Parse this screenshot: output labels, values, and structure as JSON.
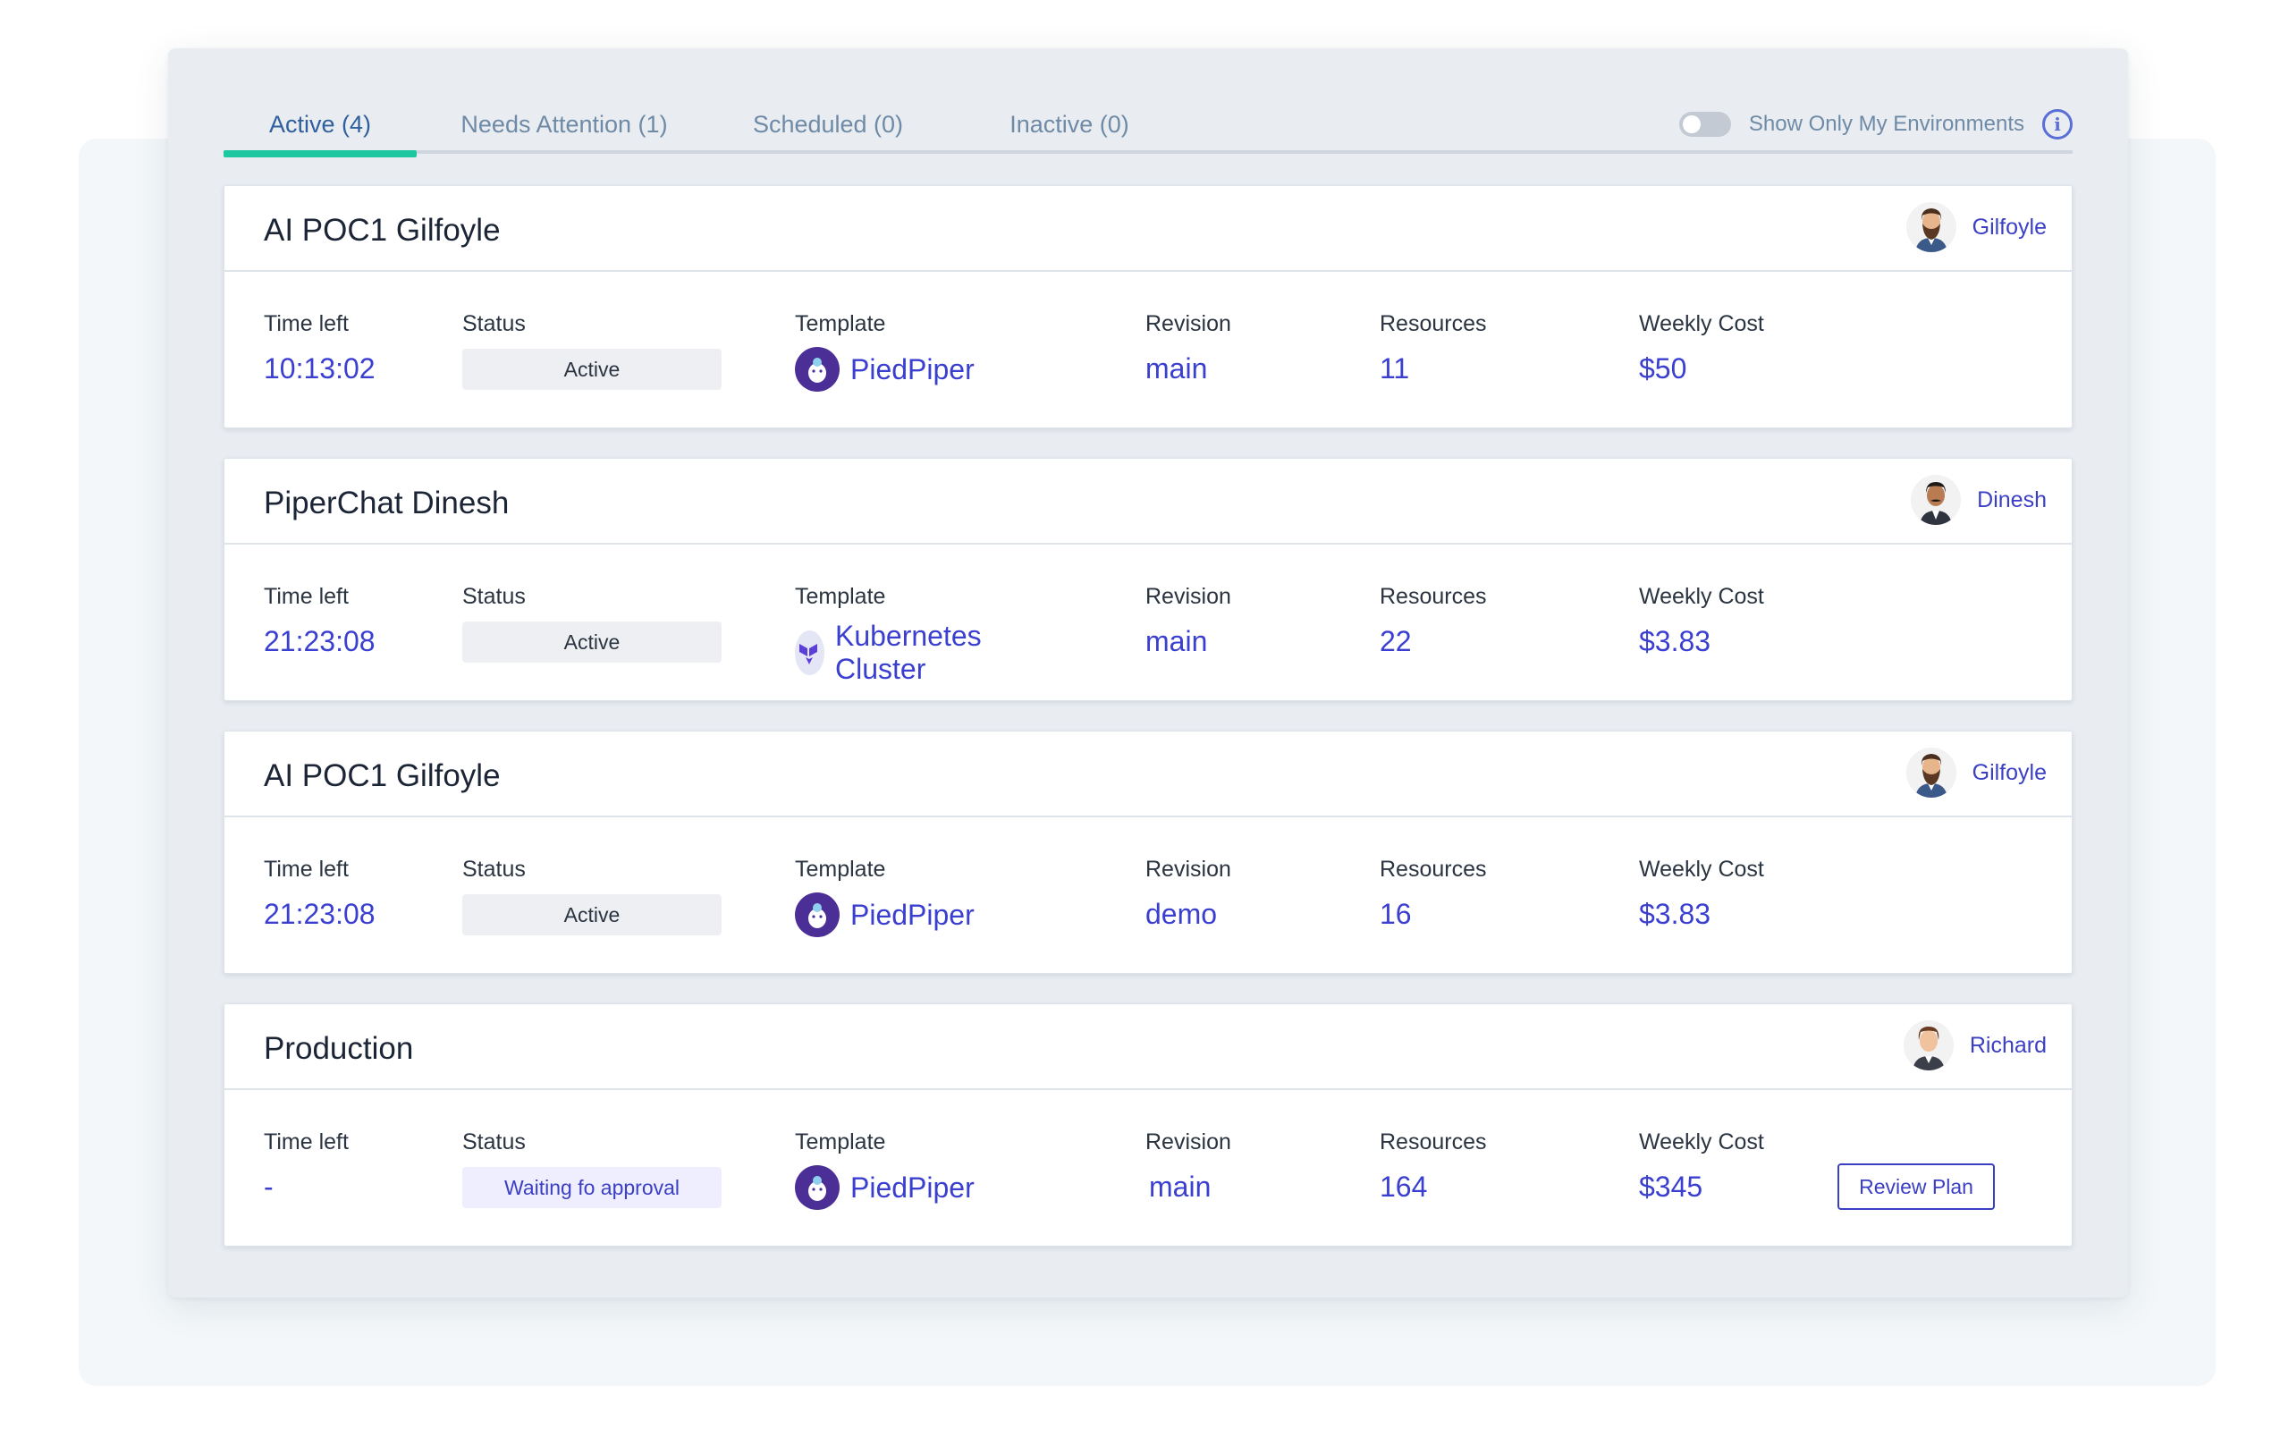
{
  "tabs": [
    {
      "label": "Active (4)",
      "active": true
    },
    {
      "label": "Needs Attention (1)",
      "active": false
    },
    {
      "label": "Scheduled (0)",
      "active": false
    },
    {
      "label": "Inactive (0)",
      "active": false
    }
  ],
  "toggle": {
    "label": "Show Only My Environments",
    "on": false
  },
  "labels": {
    "time_left": "Time left",
    "status": "Status",
    "template": "Template",
    "revision": "Revision",
    "resources": "Resources",
    "weekly_cost": "Weekly Cost"
  },
  "colors": {
    "accent": "#3a3fd0",
    "tab_underline": "#1dc7a0",
    "status_active_bg": "#edeff2",
    "status_waiting_bg": "#eeeefe"
  },
  "environments": [
    {
      "title": "AI POC1 Gilfoyle",
      "owner": "Gilfoyle",
      "owner_avatar": "bearded-man-avatar",
      "time_left": "10:13:02",
      "status": "Active",
      "template": "PiedPiper",
      "template_icon": "piedpiper-logo-icon",
      "revision": "main",
      "resources": "11",
      "weekly_cost": "$50"
    },
    {
      "title": "PiperChat Dinesh",
      "owner": "Dinesh",
      "owner_avatar": "mustached-man-avatar",
      "time_left": "21:23:08",
      "status": "Active",
      "template": "Kubernetes Cluster",
      "template_icon": "terraform-logo-icon",
      "revision": "main",
      "resources": "22",
      "weekly_cost": "$3.83"
    },
    {
      "title": "AI POC1 Gilfoyle",
      "owner": "Gilfoyle",
      "owner_avatar": "bearded-man-avatar",
      "time_left": "21:23:08",
      "status": "Active",
      "template": "PiedPiper",
      "template_icon": "piedpiper-logo-icon",
      "revision": "demo",
      "resources": "16",
      "weekly_cost": "$3.83"
    },
    {
      "title": "Production",
      "owner": "Richard",
      "owner_avatar": "young-man-avatar",
      "time_left": "-",
      "status": "Waiting fo approval",
      "template": "PiedPiper",
      "template_icon": "piedpiper-logo-icon",
      "revision": "main",
      "resources": "164",
      "weekly_cost": "$345",
      "action_label": "Review Plan"
    }
  ]
}
